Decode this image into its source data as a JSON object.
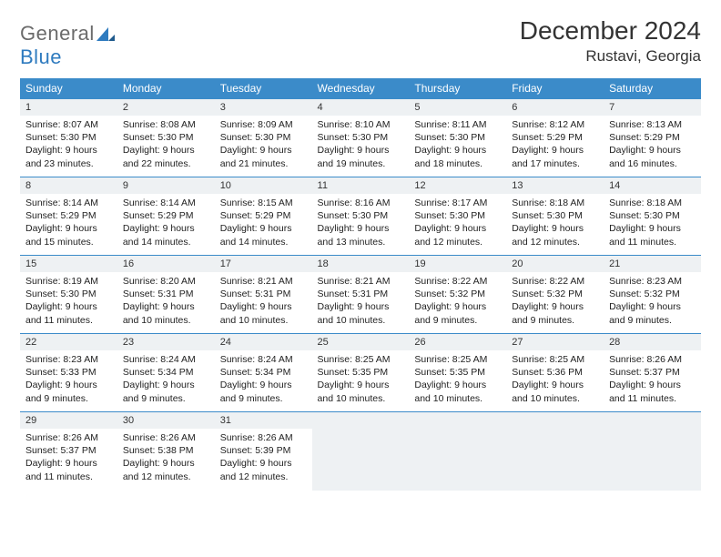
{
  "logo": {
    "word1": "General",
    "word2": "Blue"
  },
  "title": "December 2024",
  "location": "Rustavi, Georgia",
  "colors": {
    "header_bg": "#3b8bc9",
    "header_fg": "#ffffff",
    "daynum_bg": "#eef1f3",
    "border": "#3b8bc9",
    "logo_gray": "#6b6b6b",
    "logo_blue": "#2f7bbf"
  },
  "weekdays": [
    "Sunday",
    "Monday",
    "Tuesday",
    "Wednesday",
    "Thursday",
    "Friday",
    "Saturday"
  ],
  "weeks": [
    [
      {
        "n": "1",
        "sunrise": "8:07 AM",
        "sunset": "5:30 PM",
        "dl": "9 hours and 23 minutes."
      },
      {
        "n": "2",
        "sunrise": "8:08 AM",
        "sunset": "5:30 PM",
        "dl": "9 hours and 22 minutes."
      },
      {
        "n": "3",
        "sunrise": "8:09 AM",
        "sunset": "5:30 PM",
        "dl": "9 hours and 21 minutes."
      },
      {
        "n": "4",
        "sunrise": "8:10 AM",
        "sunset": "5:30 PM",
        "dl": "9 hours and 19 minutes."
      },
      {
        "n": "5",
        "sunrise": "8:11 AM",
        "sunset": "5:30 PM",
        "dl": "9 hours and 18 minutes."
      },
      {
        "n": "6",
        "sunrise": "8:12 AM",
        "sunset": "5:29 PM",
        "dl": "9 hours and 17 minutes."
      },
      {
        "n": "7",
        "sunrise": "8:13 AM",
        "sunset": "5:29 PM",
        "dl": "9 hours and 16 minutes."
      }
    ],
    [
      {
        "n": "8",
        "sunrise": "8:14 AM",
        "sunset": "5:29 PM",
        "dl": "9 hours and 15 minutes."
      },
      {
        "n": "9",
        "sunrise": "8:14 AM",
        "sunset": "5:29 PM",
        "dl": "9 hours and 14 minutes."
      },
      {
        "n": "10",
        "sunrise": "8:15 AM",
        "sunset": "5:29 PM",
        "dl": "9 hours and 14 minutes."
      },
      {
        "n": "11",
        "sunrise": "8:16 AM",
        "sunset": "5:30 PM",
        "dl": "9 hours and 13 minutes."
      },
      {
        "n": "12",
        "sunrise": "8:17 AM",
        "sunset": "5:30 PM",
        "dl": "9 hours and 12 minutes."
      },
      {
        "n": "13",
        "sunrise": "8:18 AM",
        "sunset": "5:30 PM",
        "dl": "9 hours and 12 minutes."
      },
      {
        "n": "14",
        "sunrise": "8:18 AM",
        "sunset": "5:30 PM",
        "dl": "9 hours and 11 minutes."
      }
    ],
    [
      {
        "n": "15",
        "sunrise": "8:19 AM",
        "sunset": "5:30 PM",
        "dl": "9 hours and 11 minutes."
      },
      {
        "n": "16",
        "sunrise": "8:20 AM",
        "sunset": "5:31 PM",
        "dl": "9 hours and 10 minutes."
      },
      {
        "n": "17",
        "sunrise": "8:21 AM",
        "sunset": "5:31 PM",
        "dl": "9 hours and 10 minutes."
      },
      {
        "n": "18",
        "sunrise": "8:21 AM",
        "sunset": "5:31 PM",
        "dl": "9 hours and 10 minutes."
      },
      {
        "n": "19",
        "sunrise": "8:22 AM",
        "sunset": "5:32 PM",
        "dl": "9 hours and 9 minutes."
      },
      {
        "n": "20",
        "sunrise": "8:22 AM",
        "sunset": "5:32 PM",
        "dl": "9 hours and 9 minutes."
      },
      {
        "n": "21",
        "sunrise": "8:23 AM",
        "sunset": "5:32 PM",
        "dl": "9 hours and 9 minutes."
      }
    ],
    [
      {
        "n": "22",
        "sunrise": "8:23 AM",
        "sunset": "5:33 PM",
        "dl": "9 hours and 9 minutes."
      },
      {
        "n": "23",
        "sunrise": "8:24 AM",
        "sunset": "5:34 PM",
        "dl": "9 hours and 9 minutes."
      },
      {
        "n": "24",
        "sunrise": "8:24 AM",
        "sunset": "5:34 PM",
        "dl": "9 hours and 9 minutes."
      },
      {
        "n": "25",
        "sunrise": "8:25 AM",
        "sunset": "5:35 PM",
        "dl": "9 hours and 10 minutes."
      },
      {
        "n": "26",
        "sunrise": "8:25 AM",
        "sunset": "5:35 PM",
        "dl": "9 hours and 10 minutes."
      },
      {
        "n": "27",
        "sunrise": "8:25 AM",
        "sunset": "5:36 PM",
        "dl": "9 hours and 10 minutes."
      },
      {
        "n": "28",
        "sunrise": "8:26 AM",
        "sunset": "5:37 PM",
        "dl": "9 hours and 11 minutes."
      }
    ],
    [
      {
        "n": "29",
        "sunrise": "8:26 AM",
        "sunset": "5:37 PM",
        "dl": "9 hours and 11 minutes."
      },
      {
        "n": "30",
        "sunrise": "8:26 AM",
        "sunset": "5:38 PM",
        "dl": "9 hours and 12 minutes."
      },
      {
        "n": "31",
        "sunrise": "8:26 AM",
        "sunset": "5:39 PM",
        "dl": "9 hours and 12 minutes."
      },
      null,
      null,
      null,
      null
    ]
  ],
  "labels": {
    "sunrise": "Sunrise:",
    "sunset": "Sunset:",
    "daylight": "Daylight:"
  }
}
